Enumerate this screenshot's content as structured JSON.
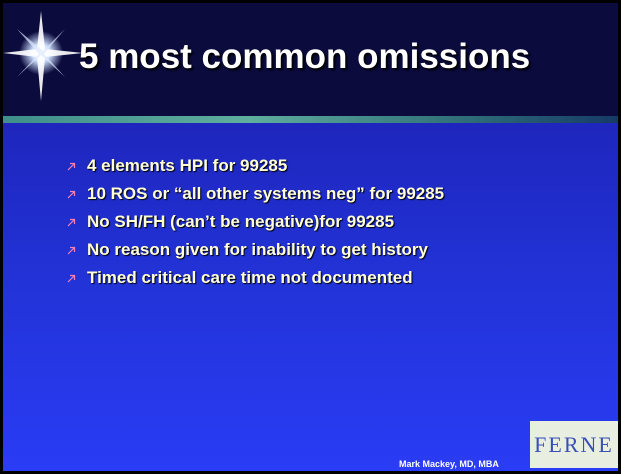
{
  "title": "5 most common omissions",
  "bullets": [
    "4 elements HPI for 99285",
    "10 ROS or “all other systems neg” for 99285",
    "No SH/FH (can’t be negative)for 99285",
    "No reason given for inability to get history",
    "Timed critical care time not documented"
  ],
  "footer": {
    "author": "Mark Mackey, MD, MBA",
    "logo": "FERNE"
  }
}
